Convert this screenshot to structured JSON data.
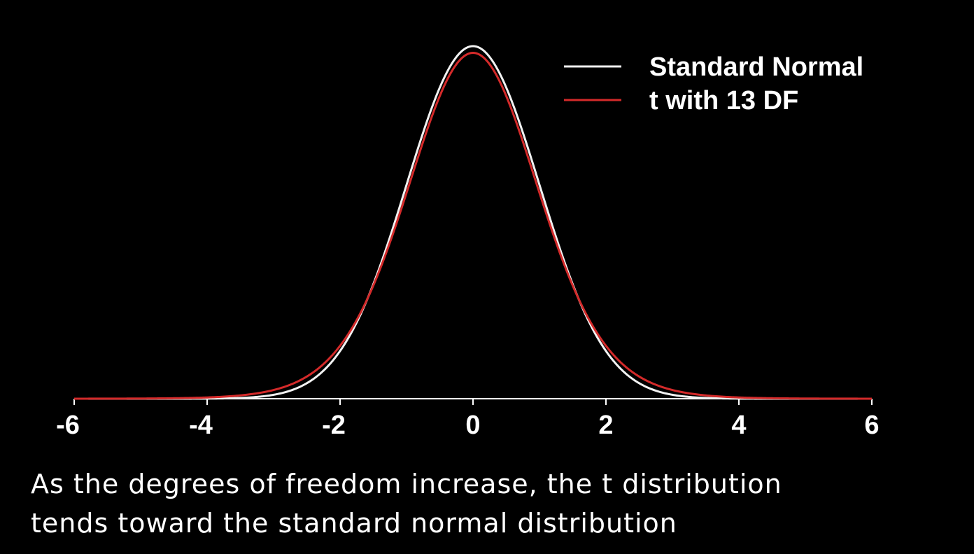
{
  "colors": {
    "background": "#000000",
    "normal_line": "#f2f2f2",
    "t_line": "#d42a2a",
    "axis": "#ffffff",
    "text": "#ffffff"
  },
  "chart_data": {
    "type": "line",
    "title": "",
    "xlabel": "",
    "ylabel": "",
    "xlim": [
      -6,
      6
    ],
    "ylim": [
      0,
      0.4
    ],
    "x_ticks": [
      -6,
      -4,
      -2,
      0,
      2,
      4,
      6
    ],
    "x_tick_labels": [
      "-6",
      "-4",
      "-2",
      "0",
      "2",
      "4",
      "6"
    ],
    "grid": false,
    "legend_placement": "top-right",
    "series": [
      {
        "name": "Standard Normal",
        "color": "#f2f2f2",
        "x": [
          -6,
          -5.5,
          -5,
          -4.5,
          -4,
          -3.5,
          -3,
          -2.75,
          -2.5,
          -2.25,
          -2,
          -1.75,
          -1.5,
          -1.25,
          -1,
          -0.75,
          -0.5,
          -0.25,
          0,
          0.25,
          0.5,
          0.75,
          1,
          1.25,
          1.5,
          1.75,
          2,
          2.25,
          2.5,
          2.75,
          3,
          3.5,
          4,
          4.5,
          5,
          5.5,
          6
        ],
        "y": [
          0.0,
          0.0,
          0.0,
          0.0,
          0.0001,
          0.0009,
          0.0044,
          0.0091,
          0.0175,
          0.0317,
          0.054,
          0.0863,
          0.1295,
          0.1826,
          0.242,
          0.3011,
          0.3521,
          0.3867,
          0.3989,
          0.3867,
          0.3521,
          0.3011,
          0.242,
          0.1826,
          0.1295,
          0.0863,
          0.054,
          0.0317,
          0.0175,
          0.0091,
          0.0044,
          0.0009,
          0.0001,
          0.0,
          0.0,
          0.0,
          0.0
        ]
      },
      {
        "name": "t with 13 DF",
        "color": "#d42a2a",
        "x": [
          -6,
          -5.5,
          -5,
          -4.5,
          -4,
          -3.5,
          -3,
          -2.75,
          -2.5,
          -2.25,
          -2,
          -1.75,
          -1.5,
          -1.25,
          -1,
          -0.75,
          -0.5,
          -0.25,
          0,
          0.25,
          0.5,
          0.75,
          1,
          1.25,
          1.5,
          1.75,
          2,
          2.25,
          2.5,
          2.75,
          3,
          3.5,
          4,
          4.5,
          5,
          5.5,
          6
        ],
        "y": [
          0.0001,
          0.0002,
          0.0004,
          0.0009,
          0.0021,
          0.0046,
          0.0099,
          0.0145,
          0.0214,
          0.0316,
          0.0569,
          0.0873,
          0.1273,
          0.1786,
          0.2355,
          0.2937,
          0.3453,
          0.3803,
          0.3934,
          0.3803,
          0.3453,
          0.2937,
          0.2355,
          0.1786,
          0.1273,
          0.0873,
          0.0569,
          0.0316,
          0.0214,
          0.0145,
          0.0099,
          0.0046,
          0.0021,
          0.0009,
          0.0004,
          0.0002,
          0.0001
        ]
      }
    ]
  },
  "caption": {
    "line1": "As the degrees of freedom increase, the t distribution",
    "line2": "tends toward the standard normal distribution"
  }
}
